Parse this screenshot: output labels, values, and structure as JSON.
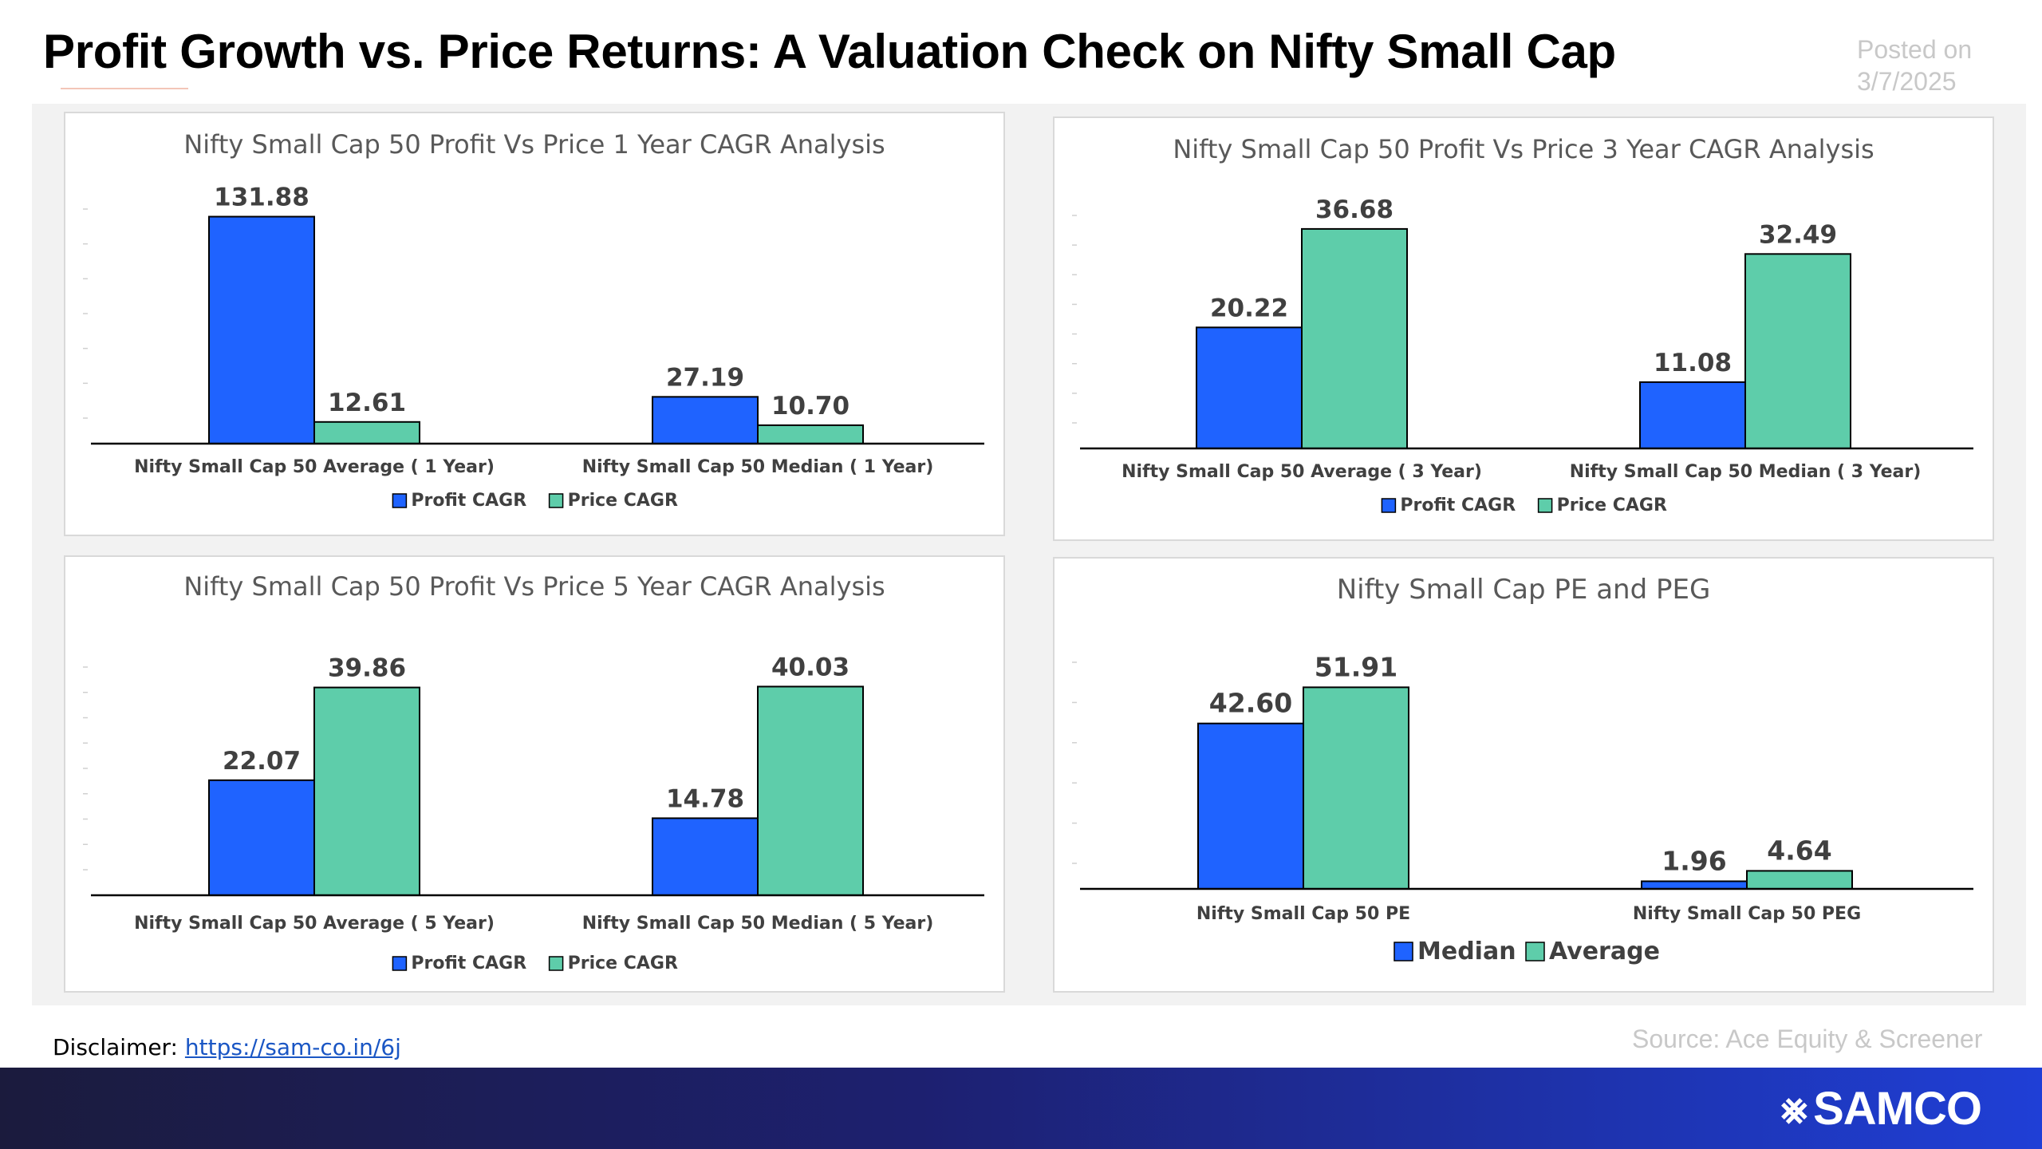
{
  "header": {
    "title": "Profit Growth vs. Price Returns: A Valuation Check on Nifty Small Cap",
    "posted_label": "Posted on",
    "posted_date": "3/7/2025"
  },
  "colors": {
    "blue": "#1f63ff",
    "green": "#5ecdaa",
    "axis": "#000000"
  },
  "chart_data": [
    {
      "type": "bar",
      "title": "Nifty Small Cap 50 Profit Vs Price 1 Year CAGR Analysis",
      "categories": [
        "Nifty Small Cap 50 Average ( 1 Year)",
        "Nifty Small Cap 50 Median ( 1 Year)"
      ],
      "series": [
        {
          "name": "Profit CAGR",
          "values": [
            131.88,
            27.19
          ],
          "labels": [
            "131.88",
            "27.19"
          ]
        },
        {
          "name": "Price CAGR",
          "values": [
            12.61,
            10.7
          ],
          "labels": [
            "12.61",
            "10.70"
          ]
        }
      ],
      "ylim": [
        0,
        140
      ],
      "legend": "bottom"
    },
    {
      "type": "bar",
      "title": "Nifty Small Cap 50 Profit Vs Price 3 Year CAGR Analysis",
      "categories": [
        "Nifty Small Cap 50 Average ( 3 Year)",
        "Nifty Small Cap 50 Median ( 3 Year)"
      ],
      "series": [
        {
          "name": "Profit CAGR",
          "values": [
            20.22,
            11.08
          ],
          "labels": [
            "20.22",
            "11.08"
          ]
        },
        {
          "name": "Price CAGR",
          "values": [
            36.68,
            32.49
          ],
          "labels": [
            "36.68",
            "32.49"
          ]
        }
      ],
      "ylim": [
        0,
        40
      ],
      "legend": "bottom"
    },
    {
      "type": "bar",
      "title": "Nifty Small Cap 50 Profit Vs Price 5 Year CAGR Analysis",
      "categories": [
        "Nifty Small Cap 50 Average ( 5 Year)",
        "Nifty Small Cap 50 Median ( 5 Year)"
      ],
      "series": [
        {
          "name": "Profit CAGR",
          "values": [
            22.07,
            14.78
          ],
          "labels": [
            "22.07",
            "14.78"
          ]
        },
        {
          "name": "Price CAGR",
          "values": [
            39.86,
            40.03
          ],
          "labels": [
            "39.86",
            "40.03"
          ]
        }
      ],
      "ylim": [
        0,
        45
      ],
      "legend": "bottom"
    },
    {
      "type": "bar",
      "title": "Nifty Small Cap PE and PEG",
      "categories": [
        "Nifty Small Cap 50 PE",
        "Nifty Small Cap 50 PEG"
      ],
      "series": [
        {
          "name": "Median",
          "values": [
            42.6,
            1.96
          ],
          "labels": [
            "42.60",
            "1.96"
          ]
        },
        {
          "name": "Average",
          "values": [
            51.91,
            4.64
          ],
          "labels": [
            "51.91",
            "4.64"
          ]
        }
      ],
      "ylim": [
        0,
        60
      ],
      "legend": "bottom"
    }
  ],
  "footer": {
    "disclaimer_label": "Disclaimer:",
    "disclaimer_link": "https://sam-co.in/6j",
    "source": "Source: Ace Equity & Screener",
    "brand": "SAMCO"
  }
}
